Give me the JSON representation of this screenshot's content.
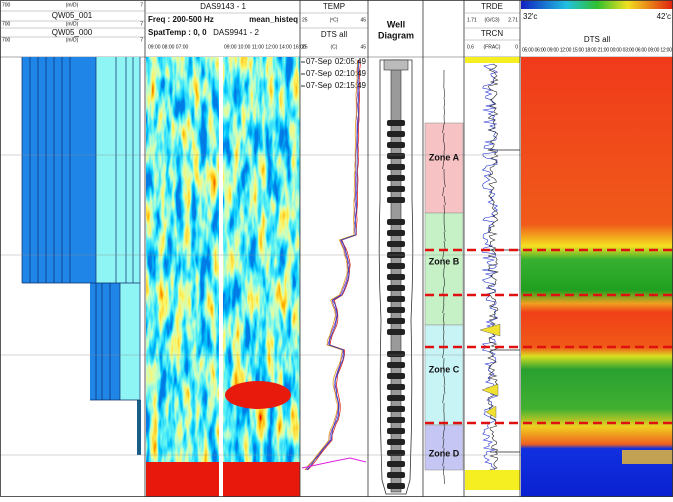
{
  "track1": {
    "row1": [
      "700",
      "(m/D)",
      "7"
    ],
    "name1": "QW05_001",
    "row2": [
      "700",
      "(m/D)",
      "7"
    ],
    "name2": "QW05_000",
    "row3": [
      "700",
      "(m/D)",
      "7"
    ]
  },
  "das": {
    "title1": "DAS9143 - 1",
    "freq": "Freq : 200-500 Hz",
    "method": "mean_histeq",
    "spat": "SpatTemp : 0, 0",
    "title2": "DAS9941 - 2",
    "times1": "09:00 08:00 07:00",
    "times2": "09:00 10:00 11:00 12:00 14:00 16:00"
  },
  "temp": {
    "title": "TEMP",
    "row1": [
      "25",
      "(ºC)",
      "45"
    ],
    "name": "DTS all",
    "row2": [
      "25",
      "(C)",
      "45"
    ],
    "stamps": [
      [
        "07-Sep",
        "02:05:49"
      ],
      [
        "07-Sep",
        "02:10:49"
      ],
      [
        "07-Sep",
        "02:15:49"
      ]
    ]
  },
  "well": {
    "title": [
      "Well",
      "Diagram"
    ]
  },
  "zones": [
    "Zone A",
    "Zone B",
    "Zone C",
    "Zone D"
  ],
  "logs": {
    "title1": "TRDE",
    "row1": [
      "1.71",
      "(G/C3)",
      "2.71"
    ],
    "title2": "TRCN",
    "row2": [
      "0.6",
      "(FRAC)",
      "0"
    ]
  },
  "dts": {
    "min": "32'c",
    "max": "42'c",
    "name": "DTS all",
    "times": "05:00 06:00 09:00 12:00 15:00 18:00 21:00 00:00 03:00 06:00 09:00 12:00"
  }
}
